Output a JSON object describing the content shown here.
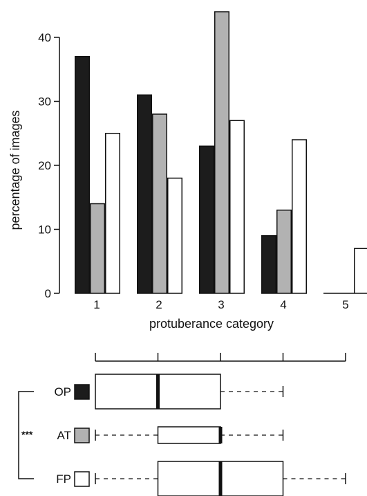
{
  "chart_data": [
    {
      "type": "bar",
      "title": "",
      "xlabel": "protuberance category",
      "ylabel": "percentage of images",
      "categories": [
        "1",
        "2",
        "3",
        "4",
        "5"
      ],
      "ylim": [
        0,
        45
      ],
      "yticks": [
        "0",
        "10",
        "20",
        "30",
        "40"
      ],
      "grid": false,
      "series": [
        {
          "name": "OP",
          "color": "#1c1c1c",
          "values": [
            37,
            31,
            23,
            9,
            0
          ]
        },
        {
          "name": "AT",
          "color": "#b2b2b2",
          "values": [
            14,
            28,
            44,
            13,
            0
          ]
        },
        {
          "name": "FP",
          "color": "#ffffff",
          "values": [
            25,
            18,
            27,
            24,
            7
          ]
        }
      ]
    },
    {
      "type": "boxplot",
      "xlim": [
        1,
        5
      ],
      "significance": "***",
      "groups": [
        {
          "label": "OP",
          "color": "#1c1c1c",
          "whisker_low": 1,
          "q1": 1,
          "median": 2,
          "q3": 3,
          "whisker_high": 4
        },
        {
          "label": "AT",
          "color": "#b2b2b2",
          "whisker_low": 1,
          "q1": 2,
          "median": 3,
          "q3": 3,
          "whisker_high": 4
        },
        {
          "label": "FP",
          "color": "#ffffff",
          "whisker_low": 1,
          "q1": 2,
          "median": 3,
          "q3": 4,
          "whisker_high": 5
        }
      ]
    }
  ]
}
